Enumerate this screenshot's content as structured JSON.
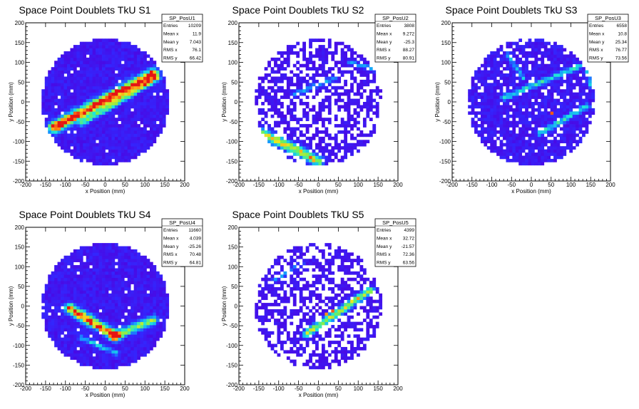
{
  "chart_data": [
    {
      "type": "heatmap",
      "title": "Space Point Doublets TkU S1",
      "xlabel": "x Position (mm)",
      "ylabel": "y Position (mm)",
      "xlim": [
        -200,
        200
      ],
      "ylim": [
        -200,
        200
      ],
      "x_ticks": [
        -200,
        -150,
        -100,
        -50,
        0,
        50,
        100,
        150,
        200
      ],
      "y_ticks": [
        -200,
        -150,
        -100,
        -50,
        0,
        50,
        100,
        150,
        200
      ],
      "detector_radius": 160,
      "background_density": 0.97,
      "noise_level": 0.15,
      "tracks": [
        {
          "from": [
            -130,
            -65
          ],
          "to": [
            120,
            70
          ],
          "width": 10,
          "peak": 1.0
        },
        {
          "from": [
            -60,
            -55
          ],
          "to": [
            130,
            60
          ],
          "width": 6,
          "peak": 0.45
        }
      ],
      "stats": {
        "name": "SP_PosU1",
        "rows": [
          {
            "label": "Entries",
            "value": "10209"
          },
          {
            "label": "Mean x",
            "value": "11.9"
          },
          {
            "label": "Mean y",
            "value": "7.043"
          },
          {
            "label": "RMS x",
            "value": "76.1"
          },
          {
            "label": "RMS y",
            "value": "66.42"
          }
        ]
      }
    },
    {
      "type": "heatmap",
      "title": "Space Point Doublets TkU S2",
      "xlabel": "x Position (mm)",
      "ylabel": "y Position (mm)",
      "xlim": [
        -200,
        200
      ],
      "ylim": [
        -200,
        200
      ],
      "x_ticks": [
        -200,
        -150,
        -100,
        -50,
        0,
        50,
        100,
        150,
        200
      ],
      "y_ticks": [
        -200,
        -150,
        -100,
        -50,
        0,
        50,
        100,
        150,
        200
      ],
      "detector_radius": 160,
      "background_density": 0.58,
      "noise_level": 0.1,
      "tracks": [
        {
          "from": [
            -140,
            -80
          ],
          "to": [
            0,
            -150
          ],
          "width": 9,
          "peak": 0.75
        },
        {
          "from": [
            -60,
            20
          ],
          "to": [
            40,
            60
          ],
          "width": 5,
          "peak": 0.35
        },
        {
          "from": [
            80,
            100
          ],
          "to": [
            150,
            80
          ],
          "width": 4,
          "peak": 0.35
        }
      ],
      "stats": {
        "name": "SP_PosU2",
        "rows": [
          {
            "label": "Entries",
            "value": "3808"
          },
          {
            "label": "Mean x",
            "value": "9.272"
          },
          {
            "label": "Mean y",
            "value": "-25.3"
          },
          {
            "label": "RMS x",
            "value": "88.27"
          },
          {
            "label": "RMS y",
            "value": "80.91"
          }
        ]
      }
    },
    {
      "type": "heatmap",
      "title": "Space Point Doublets TkU S3",
      "xlabel": "x Position (mm)",
      "ylabel": "y Position (mm)",
      "xlim": [
        -200,
        200
      ],
      "ylim": [
        -200,
        200
      ],
      "x_ticks": [
        -200,
        -150,
        -100,
        -50,
        0,
        50,
        100,
        150,
        200
      ],
      "y_ticks": [
        -200,
        -150,
        -100,
        -50,
        0,
        50,
        100,
        150,
        200
      ],
      "detector_radius": 160,
      "background_density": 0.85,
      "noise_level": 0.15,
      "tracks": [
        {
          "from": [
            -70,
            10
          ],
          "to": [
            120,
            90
          ],
          "width": 5,
          "peak": 0.45
        },
        {
          "from": [
            20,
            -80
          ],
          "to": [
            140,
            -10
          ],
          "width": 5,
          "peak": 0.45
        },
        {
          "from": [
            130,
            130
          ],
          "to": [
            150,
            40
          ],
          "width": 4,
          "peak": 0.4
        },
        {
          "from": [
            -60,
            120
          ],
          "to": [
            -20,
            60
          ],
          "width": 4,
          "peak": 0.35
        }
      ],
      "hot_pixels": [
        {
          "x": 55,
          "y": -30,
          "value": 0.95
        },
        {
          "x": -150,
          "y": -70,
          "value": 0.95
        }
      ],
      "stats": {
        "name": "SP_PosU3",
        "rows": [
          {
            "label": "Entries",
            "value": "6558"
          },
          {
            "label": "Mean x",
            "value": "10.8"
          },
          {
            "label": "Mean y",
            "value": "25.34"
          },
          {
            "label": "RMS x",
            "value": "76.77"
          },
          {
            "label": "RMS y",
            "value": "73.56"
          }
        ]
      }
    },
    {
      "type": "heatmap",
      "title": "Space Point Doublets TkU S4",
      "xlabel": "x Position (mm)",
      "ylabel": "y Position (mm)",
      "xlim": [
        -200,
        200
      ],
      "ylim": [
        -200,
        200
      ],
      "x_ticks": [
        -200,
        -150,
        -100,
        -50,
        0,
        50,
        100,
        150,
        200
      ],
      "y_ticks": [
        -200,
        -150,
        -100,
        -50,
        0,
        50,
        100,
        150,
        200
      ],
      "detector_radius": 160,
      "background_density": 0.96,
      "noise_level": 0.15,
      "tracks": [
        {
          "from": [
            -90,
            -5
          ],
          "to": [
            25,
            -75
          ],
          "width": 9,
          "peak": 0.9
        },
        {
          "from": [
            25,
            -75
          ],
          "to": [
            120,
            -35
          ],
          "width": 8,
          "peak": 0.6
        },
        {
          "from": [
            -60,
            -80
          ],
          "to": [
            30,
            -120
          ],
          "width": 5,
          "peak": 0.35
        }
      ],
      "stats": {
        "name": "SP_PosU4",
        "rows": [
          {
            "label": "Entries",
            "value": "11660"
          },
          {
            "label": "Mean x",
            "value": "4.039"
          },
          {
            "label": "Mean y",
            "value": "-25.26"
          },
          {
            "label": "RMS x",
            "value": "70.48"
          },
          {
            "label": "RMS y",
            "value": "64.81"
          }
        ]
      }
    },
    {
      "type": "heatmap",
      "title": "Space Point Doublets TkU S5",
      "xlabel": "x Position (mm)",
      "ylabel": "y Position (mm)",
      "xlim": [
        -200,
        200
      ],
      "ylim": [
        -200,
        200
      ],
      "x_ticks": [
        -200,
        -150,
        -100,
        -50,
        0,
        50,
        100,
        150,
        200
      ],
      "y_ticks": [
        -200,
        -150,
        -100,
        -50,
        0,
        50,
        100,
        150,
        200
      ],
      "detector_radius": 160,
      "background_density": 0.55,
      "noise_level": 0.1,
      "tracks": [
        {
          "from": [
            -30,
            -70
          ],
          "to": [
            130,
            40
          ],
          "width": 7,
          "peak": 0.7
        },
        {
          "from": [
            -120,
            60
          ],
          "to": [
            -40,
            110
          ],
          "width": 4,
          "peak": 0.3
        }
      ],
      "hot_pixels": [
        {
          "x": 35,
          "y": -15,
          "value": 0.95
        },
        {
          "x": 20,
          "y": -20,
          "value": 0.9
        }
      ],
      "stats": {
        "name": "SP_PosU5",
        "rows": [
          {
            "label": "Entries",
            "value": "4399"
          },
          {
            "label": "Mean x",
            "value": "32.72"
          },
          {
            "label": "Mean y",
            "value": "-21.57"
          },
          {
            "label": "RMS x",
            "value": "72.36"
          },
          {
            "label": "RMS y",
            "value": "63.56"
          }
        ]
      }
    }
  ]
}
